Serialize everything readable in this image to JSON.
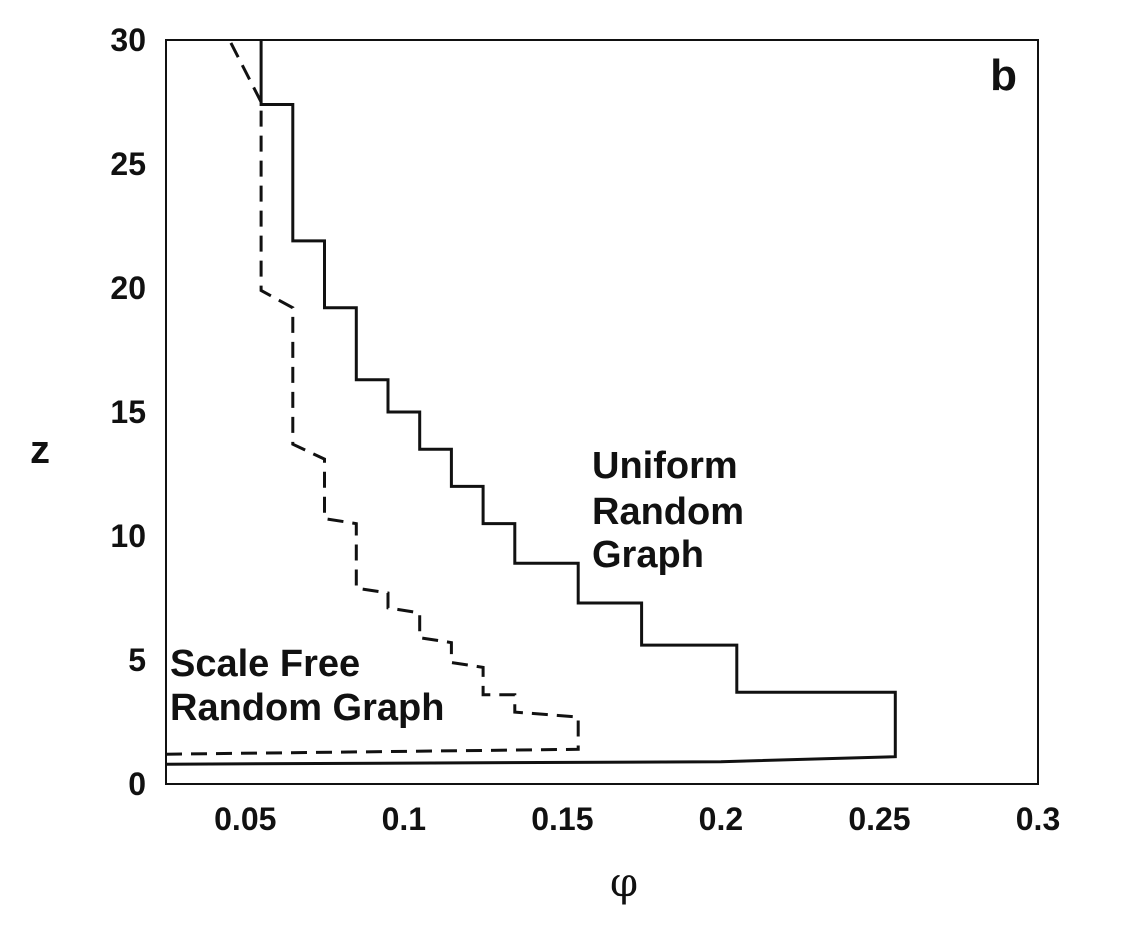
{
  "chart_data": {
    "type": "line",
    "panel_label": "b",
    "xlabel": "φ",
    "ylabel": "z",
    "xlim": [
      0.025,
      0.3
    ],
    "ylim": [
      0,
      30
    ],
    "x_ticks": [
      0.05,
      0.1,
      0.15,
      0.2,
      0.25,
      0.3
    ],
    "x_tick_labels": [
      "0.05",
      "0.1",
      "0.15",
      "0.2",
      "0.25",
      "0.3"
    ],
    "y_ticks": [
      0,
      5,
      10,
      15,
      20,
      25,
      30
    ],
    "y_tick_labels": [
      "0",
      "5",
      "10",
      "15",
      "20",
      "25",
      "30"
    ],
    "grid": false,
    "annotations": [
      {
        "lines": [
          "Uniform",
          "Random",
          "Graph"
        ],
        "series": "uniform"
      },
      {
        "lines": [
          "Scale Free",
          "Random Graph"
        ],
        "series": "scale_free"
      }
    ],
    "series": [
      {
        "id": "uniform",
        "style": "solid",
        "color": "#111111",
        "points": [
          [
            0.025,
            0.8
          ],
          [
            0.2,
            0.9
          ],
          [
            0.255,
            1.1
          ],
          [
            0.255,
            3.7
          ],
          [
            0.205,
            3.7
          ],
          [
            0.205,
            5.6
          ],
          [
            0.175,
            5.6
          ],
          [
            0.175,
            7.3
          ],
          [
            0.155,
            7.3
          ],
          [
            0.155,
            8.9
          ],
          [
            0.135,
            8.9
          ],
          [
            0.135,
            10.5
          ],
          [
            0.125,
            10.5
          ],
          [
            0.125,
            12.0
          ],
          [
            0.115,
            12.0
          ],
          [
            0.115,
            13.5
          ],
          [
            0.105,
            13.5
          ],
          [
            0.105,
            15.0
          ],
          [
            0.095,
            15.0
          ],
          [
            0.095,
            16.3
          ],
          [
            0.085,
            16.3
          ],
          [
            0.085,
            19.2
          ],
          [
            0.075,
            19.2
          ],
          [
            0.075,
            21.9
          ],
          [
            0.065,
            21.9
          ],
          [
            0.065,
            27.4
          ],
          [
            0.055,
            27.4
          ],
          [
            0.055,
            30
          ]
        ]
      },
      {
        "id": "scale_free",
        "style": "dashed",
        "color": "#111111",
        "points": [
          [
            0.025,
            1.2
          ],
          [
            0.155,
            1.4
          ],
          [
            0.155,
            2.7
          ],
          [
            0.135,
            2.9
          ],
          [
            0.135,
            3.6
          ],
          [
            0.125,
            3.6
          ],
          [
            0.125,
            4.7
          ],
          [
            0.115,
            4.9
          ],
          [
            0.115,
            5.7
          ],
          [
            0.105,
            5.9
          ],
          [
            0.105,
            6.9
          ],
          [
            0.095,
            7.1
          ],
          [
            0.095,
            7.7
          ],
          [
            0.085,
            7.9
          ],
          [
            0.085,
            10.5
          ],
          [
            0.075,
            10.7
          ],
          [
            0.075,
            13.1
          ],
          [
            0.065,
            13.7
          ],
          [
            0.065,
            19.2
          ],
          [
            0.055,
            19.9
          ],
          [
            0.055,
            27.5
          ],
          [
            0.045,
            30
          ]
        ]
      }
    ]
  }
}
